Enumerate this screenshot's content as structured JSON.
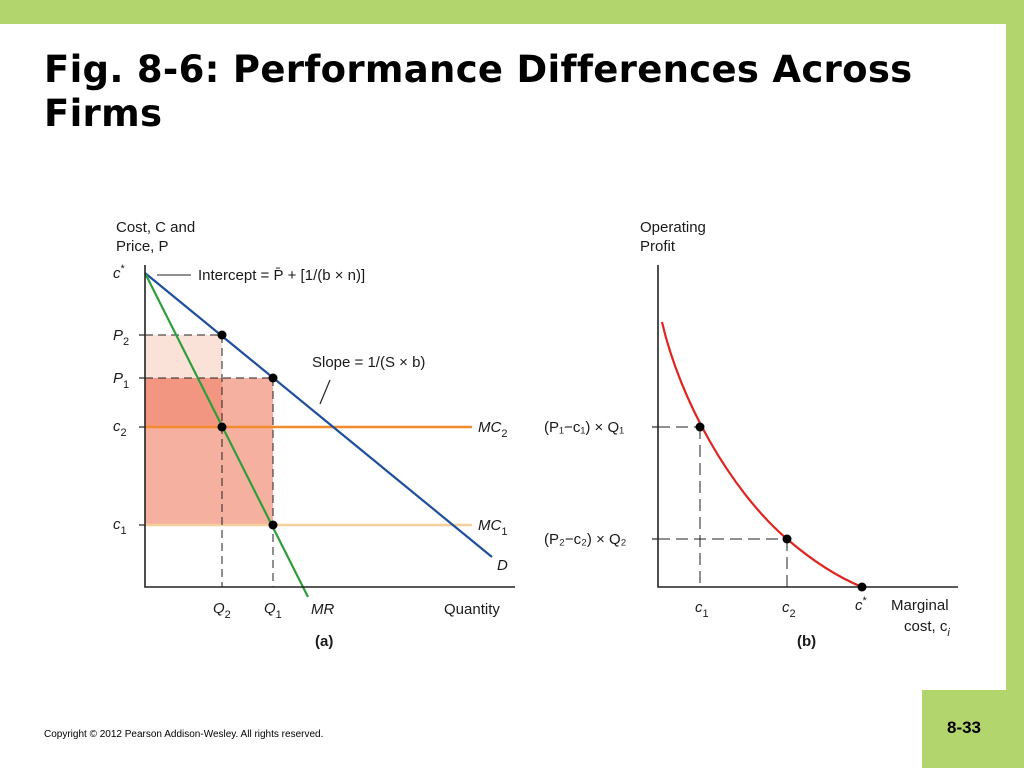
{
  "slide": {
    "title": "Fig. 8-6: Performance Differences Across Firms",
    "copyright": "Copyright © 2012 Pearson Addison-Wesley. All rights reserved.",
    "page_number": "8-33"
  },
  "colors": {
    "frame": "#b3d56e",
    "demand_line": "#1f4e9e",
    "mr_line": "#2e9e3c",
    "mc2_line": "#f28a2e",
    "mc1_line": "#f5cf9c",
    "profit_curve": "#e0241f",
    "shade_light": "#fbe2d8",
    "shade_mid": "#f6b0a0",
    "shade_dark": "#f29682"
  },
  "panel_a": {
    "y_axis_label": [
      "Cost, C and",
      "Price, P"
    ],
    "x_axis_label": "Quantity",
    "y_ticks": [
      {
        "base": "c",
        "sup": "*",
        "sub": ""
      },
      {
        "base": "P",
        "sup": "",
        "sub": "2"
      },
      {
        "base": "P",
        "sup": "",
        "sub": "1"
      },
      {
        "base": "c",
        "sup": "",
        "sub": "2"
      },
      {
        "base": "c",
        "sup": "",
        "sub": "1"
      }
    ],
    "x_ticks": [
      {
        "base": "Q",
        "sub": "2"
      },
      {
        "base": "Q",
        "sub": "1"
      }
    ],
    "intercept_annotation": "Intercept = P̄ + [1/(b × n)]",
    "slope_annotation": "Slope = 1/(S × b)",
    "line_labels": {
      "mc2": {
        "base": "MC",
        "sub": "2"
      },
      "mc1": {
        "base": "MC",
        "sub": "1"
      },
      "demand": "D",
      "mr": "MR"
    },
    "caption": "(a)"
  },
  "panel_b": {
    "y_axis_label": [
      "Operating",
      "Profit"
    ],
    "x_axis_label": [
      "Marginal",
      "cost, c"
    ],
    "x_axis_label_sub": "i",
    "y_ticks": [
      {
        "text": "(P₁−c₁) × Q₁"
      },
      {
        "text": "(P₂−c₂) × Q₂"
      }
    ],
    "x_ticks": [
      {
        "base": "c",
        "sub": "1",
        "sup": ""
      },
      {
        "base": "c",
        "sub": "2",
        "sup": ""
      },
      {
        "base": "c",
        "sub": "",
        "sup": "*"
      }
    ],
    "caption": "(b)"
  }
}
